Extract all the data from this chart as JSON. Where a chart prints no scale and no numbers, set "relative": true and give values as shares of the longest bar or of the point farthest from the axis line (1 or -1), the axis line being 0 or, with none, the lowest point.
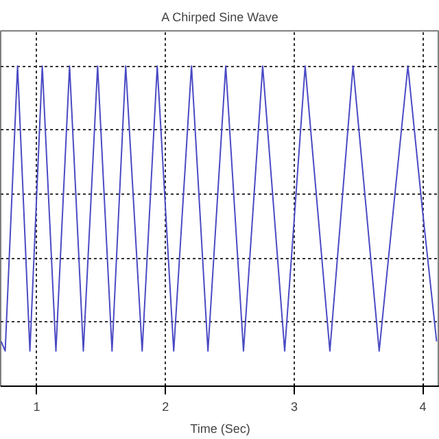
{
  "chart_data": {
    "type": "line",
    "title": "A Chirped Sine Wave",
    "xlabel": "Time (Sec)",
    "relative": true,
    "x": [
      0.723,
      0.755,
      0.803,
      0.851,
      0.899,
      0.947,
      0.995,
      1.043,
      1.096,
      1.149,
      1.202,
      1.255,
      1.309,
      1.362,
      1.418,
      1.473,
      1.529,
      1.585,
      1.638,
      1.691,
      1.755,
      1.819,
      1.878,
      1.936,
      2.0,
      2.064,
      2.133,
      2.202,
      2.266,
      2.33,
      2.399,
      2.468,
      2.537,
      2.606,
      2.681,
      2.755,
      2.841,
      2.926,
      3.006,
      3.085,
      3.181,
      3.277,
      3.367,
      3.457,
      3.559,
      3.66,
      3.771,
      3.883,
      3.995,
      4.106
    ],
    "series": [
      {
        "color": "#4a4ac4",
        "values": [
          0.14,
          0.11,
          0.555,
          1,
          0.555,
          0.11,
          0.555,
          1,
          0.555,
          0.11,
          0.555,
          1,
          0.555,
          0.11,
          0.555,
          1,
          0.555,
          0.11,
          0.555,
          1,
          0.555,
          0.11,
          0.555,
          1,
          0.555,
          0.11,
          0.555,
          1,
          0.555,
          0.11,
          0.555,
          1,
          0.555,
          0.11,
          0.555,
          1,
          0.555,
          0.11,
          0.555,
          1,
          0.555,
          0.11,
          0.555,
          1,
          0.555,
          0.11,
          0.555,
          1,
          0.555,
          0.14
        ]
      }
    ],
    "xlim": [
      0.72,
      4.13
    ],
    "xticks": [
      1,
      2,
      3,
      4
    ],
    "grid": true,
    "line_style": "solid"
  }
}
